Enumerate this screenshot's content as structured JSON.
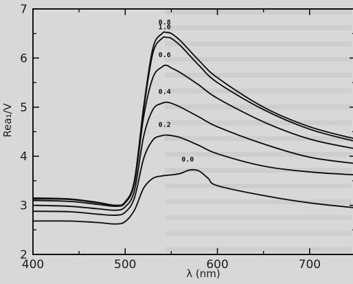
{
  "chart_data": {
    "type": "line",
    "xlabel": "λ (nm)",
    "ylabel": "Rea₁/V",
    "xlim": [
      400,
      750
    ],
    "ylim": [
      2,
      7
    ],
    "x_ticks": [
      "400",
      "500",
      "600",
      "700"
    ],
    "y_ticks": [
      "2",
      "3",
      "4",
      "5",
      "6",
      "7"
    ],
    "grid": false,
    "series": [
      {
        "name": "0.8",
        "x": [
          400,
          440,
          470,
          490,
          500,
          510,
          520,
          530,
          540,
          545,
          550,
          560,
          580,
          600,
          650,
          700,
          750
        ],
        "y": [
          3.13,
          3.12,
          3.05,
          3.0,
          3.07,
          3.5,
          5.0,
          6.2,
          6.5,
          6.52,
          6.5,
          6.35,
          5.95,
          5.6,
          5.0,
          4.6,
          4.35
        ]
      },
      {
        "name": "1.0",
        "x": [
          400,
          440,
          470,
          490,
          500,
          510,
          520,
          530,
          540,
          545,
          550,
          560,
          580,
          600,
          650,
          700,
          750
        ],
        "y": [
          3.15,
          3.13,
          3.06,
          3.0,
          3.07,
          3.5,
          4.95,
          6.1,
          6.4,
          6.42,
          6.4,
          6.25,
          5.85,
          5.5,
          4.95,
          4.55,
          4.3
        ]
      },
      {
        "name": "0.6",
        "x": [
          400,
          440,
          470,
          490,
          500,
          510,
          520,
          530,
          540,
          545,
          550,
          560,
          580,
          600,
          650,
          700,
          750
        ],
        "y": [
          3.1,
          3.08,
          3.02,
          2.98,
          3.05,
          3.45,
          4.8,
          5.6,
          5.82,
          5.85,
          5.8,
          5.7,
          5.45,
          5.18,
          4.7,
          4.35,
          4.15
        ]
      },
      {
        "name": "0.4",
        "x": [
          400,
          440,
          470,
          490,
          500,
          510,
          520,
          530,
          540,
          545,
          550,
          560,
          580,
          600,
          650,
          700,
          750
        ],
        "y": [
          3.0,
          2.98,
          2.93,
          2.9,
          2.97,
          3.3,
          4.4,
          4.95,
          5.08,
          5.1,
          5.08,
          5.0,
          4.8,
          4.6,
          4.25,
          3.98,
          3.85
        ]
      },
      {
        "name": "0.2",
        "x": [
          400,
          440,
          470,
          490,
          500,
          510,
          520,
          530,
          540,
          545,
          550,
          560,
          580,
          600,
          650,
          700,
          750
        ],
        "y": [
          2.88,
          2.87,
          2.82,
          2.8,
          2.86,
          3.15,
          3.95,
          4.33,
          4.42,
          4.43,
          4.42,
          4.38,
          4.22,
          4.05,
          3.8,
          3.68,
          3.62
        ]
      },
      {
        "name": "0.0",
        "x": [
          400,
          440,
          470,
          490,
          500,
          510,
          520,
          530,
          540,
          550,
          560,
          570,
          580,
          590,
          600,
          650,
          700,
          750
        ],
        "y": [
          2.68,
          2.68,
          2.65,
          2.62,
          2.67,
          2.9,
          3.35,
          3.55,
          3.6,
          3.62,
          3.65,
          3.72,
          3.7,
          3.55,
          3.4,
          3.2,
          3.05,
          2.95
        ]
      }
    ]
  }
}
